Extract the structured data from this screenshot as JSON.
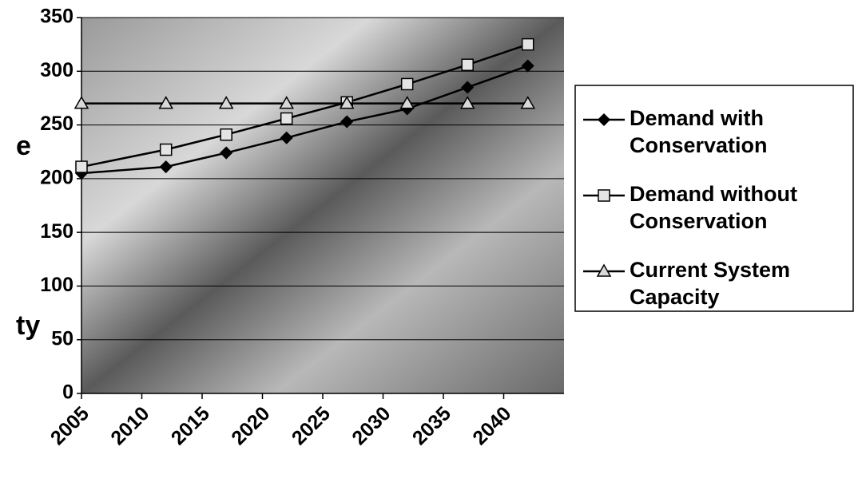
{
  "chart_data": {
    "type": "line",
    "annotations": [
      "e",
      "ty"
    ],
    "x": [
      2005,
      2012,
      2017,
      2022,
      2027,
      2032,
      2037,
      2042
    ],
    "series": [
      {
        "name": "Demand with Conservation",
        "color": "#000000",
        "marker": "diamond",
        "values": [
          205,
          211,
          224,
          238,
          253,
          265,
          285,
          305
        ]
      },
      {
        "name": "Demand without Conservation",
        "color": "#000000",
        "marker": "square",
        "values": [
          211,
          227,
          241,
          256,
          271,
          288,
          306,
          325
        ]
      },
      {
        "name": "Current System Capacity",
        "color": "#000000",
        "marker": "triangle",
        "values": [
          270,
          270,
          270,
          270,
          270,
          270,
          270,
          270
        ]
      }
    ],
    "xlim": [
      2005,
      2045
    ],
    "xticks": [
      2005,
      2010,
      2015,
      2020,
      2025,
      2030,
      2035,
      2040
    ],
    "ylim": [
      0,
      350
    ],
    "yticks": [
      0,
      50,
      100,
      150,
      200,
      250,
      300,
      350
    ],
    "grid": true,
    "legend": "right"
  }
}
